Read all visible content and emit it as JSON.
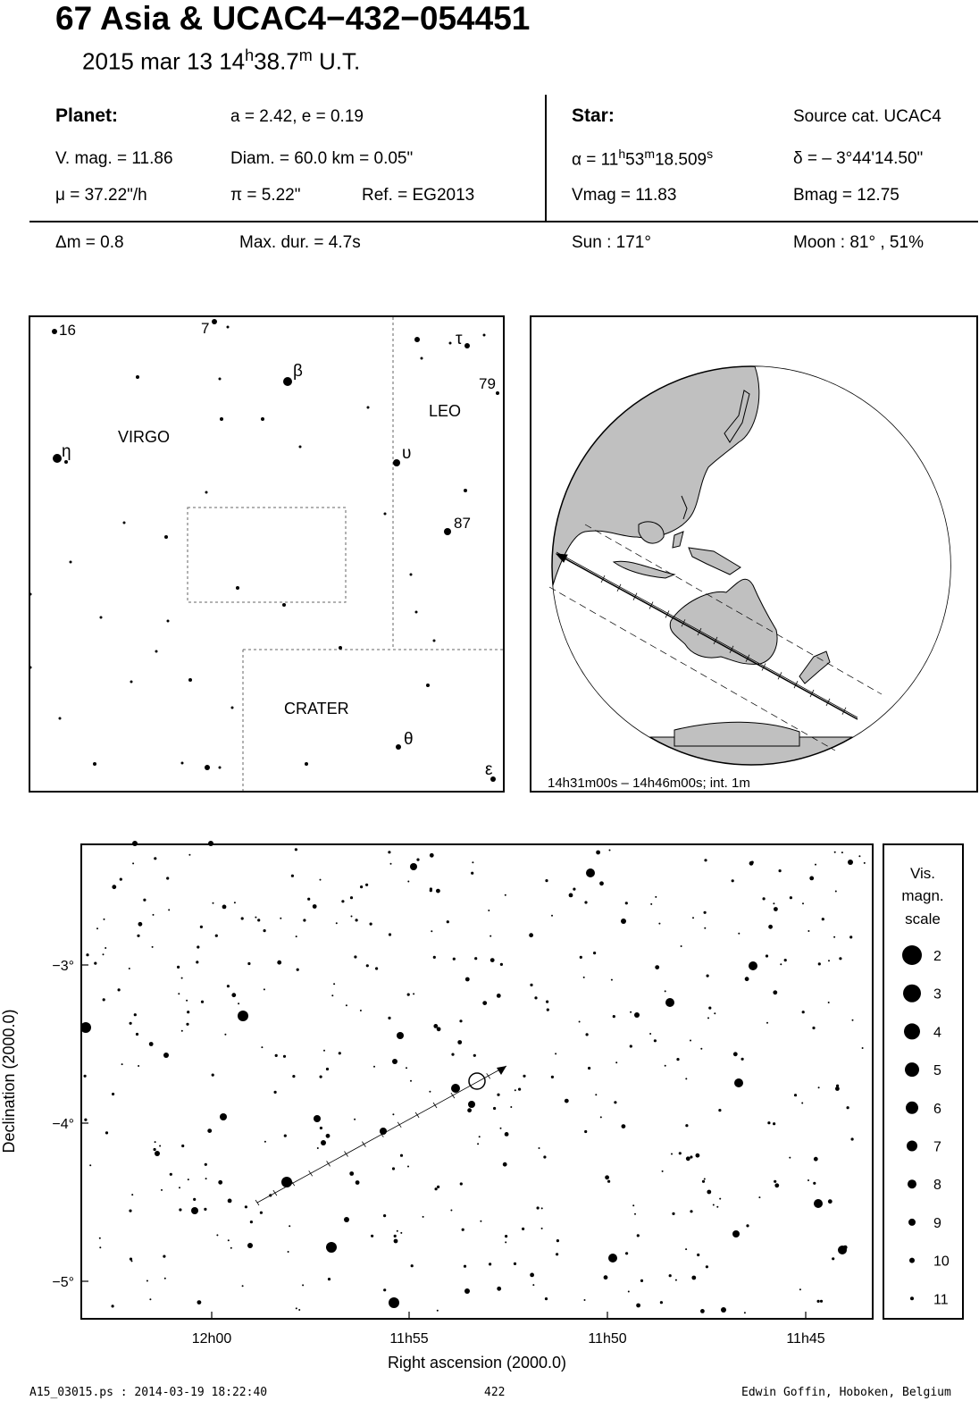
{
  "header": {
    "title": "67 Asia  &  UCAC4−432−054451",
    "date": "2015 mar 13  14",
    "time_h": "h",
    "time_m": "38.7",
    "time_msup": "m",
    "time_ut": " U.T."
  },
  "planet": {
    "heading": "Planet:",
    "orbit": "a = 2.42, e = 0.19",
    "vmag": "V. mag. = 11.86",
    "diam": "Diam. = 60.0 km = 0.05\"",
    "mu": "μ =  37.22\"/h",
    "pi": "π =  5.22\"",
    "ref": "Ref. = EG2013"
  },
  "star": {
    "heading": "Star:",
    "source": "Source cat.  UCAC4",
    "alpha_pre": "α = 11",
    "alpha_h": "h",
    "alpha_mid": "53",
    "alpha_m": "m",
    "alpha_s_val": "18.509",
    "alpha_s": "s",
    "delta": "δ = – 3°44'14.50\"",
    "vmag": "Vmag = 11.83",
    "bmag": "Bmag = 12.75"
  },
  "event": {
    "dm": "Δm = 0.8",
    "maxdur": "Max. dur. = 4.7s",
    "sun": "Sun : 171°",
    "moon": "Moon :  81° , 51%"
  },
  "constellation_map": {
    "labels": [
      "VIRGO",
      "LEO",
      "CRATER"
    ],
    "star_labels": [
      "16",
      "7",
      "β",
      "τ",
      "79",
      "η",
      "υ",
      "87",
      "θ",
      "ε"
    ]
  },
  "globe": {
    "caption": "14h31m00s – 14h46m00s; int.  1m",
    "land_color": "#c0c0c0"
  },
  "star_chart": {
    "ylabel": "Declination (2000.0)",
    "xlabel": "Right ascension (2000.0)",
    "y_ticks": [
      "−3°",
      "−4°",
      "−5°"
    ],
    "x_ticks": [
      "12h00",
      "11h55",
      "11h50",
      "11h45"
    ]
  },
  "mag_scale": {
    "title_lines": [
      "Vis.",
      "magn.",
      "scale"
    ],
    "values": [
      "2",
      "3",
      "4",
      "5",
      "6",
      "7",
      "8",
      "9",
      "10",
      "11"
    ]
  },
  "footer": {
    "file": "A15_03015.ps : 2014-03-19 18:22:40",
    "page": "422",
    "author": "Edwin Goffin, Hoboken, Belgium"
  }
}
